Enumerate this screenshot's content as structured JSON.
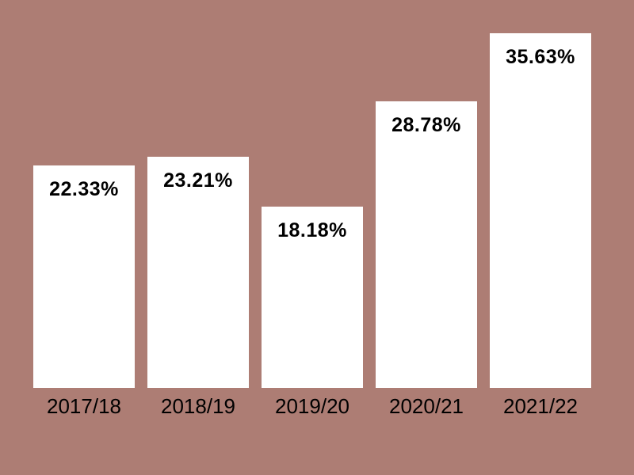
{
  "background_color": "#ad7d74",
  "bar_color": "#ffffff",
  "label_color": "#000000",
  "chart_data": {
    "type": "bar",
    "categories": [
      "2017/18",
      "2018/19",
      "2019/20",
      "2020/21",
      "2021/22"
    ],
    "values": [
      22.33,
      23.21,
      18.18,
      28.78,
      35.63
    ],
    "value_labels": [
      "22.33%",
      "23.21%",
      "18.18%",
      "28.78%",
      "35.63%"
    ],
    "title": "",
    "xlabel": "",
    "ylabel": "",
    "ylim": [
      0,
      36
    ],
    "grid": false,
    "legend": false,
    "value_label_position": "inside-top",
    "category_label_position": "below-bar"
  }
}
